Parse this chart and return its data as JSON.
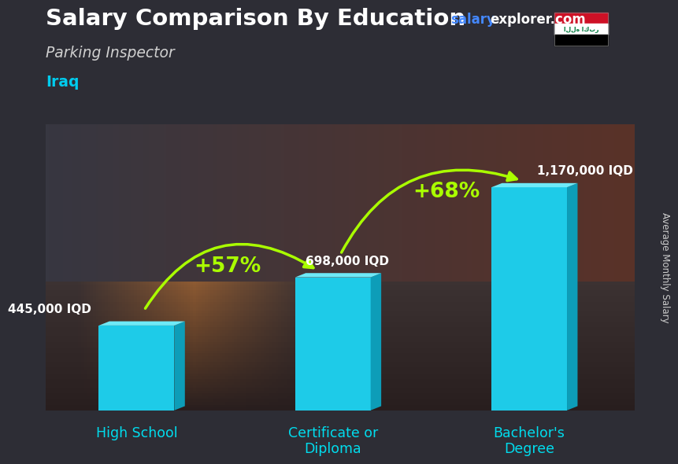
{
  "title": "Salary Comparison By Education",
  "subtitle": "Parking Inspector",
  "country": "Iraq",
  "watermark_salary": "salary",
  "watermark_rest": "explorer.com",
  "ylabel": "Average Monthly Salary",
  "categories": [
    "High School",
    "Certificate or\nDiploma",
    "Bachelor's\nDegree"
  ],
  "values": [
    445000,
    698000,
    1170000
  ],
  "value_labels": [
    "445,000 IQD",
    "698,000 IQD",
    "1,170,000 IQD"
  ],
  "pct_changes": [
    "+57%",
    "+68%"
  ],
  "bar_color_front": "#1ecbe8",
  "bar_color_top": "#6eeaf8",
  "bar_color_side": "#0d9db8",
  "title_color": "#ffffff",
  "subtitle_color": "#d0d0d0",
  "country_color": "#00ccee",
  "watermark_salary_color": "#4488ff",
  "watermark_rest_color": "#ffffff",
  "value_label_color": "#ffffff",
  "pct_color": "#aaff00",
  "xlabel_color": "#00ddee",
  "ylabel_color": "#cccccc",
  "bg_top_color": "#5a5a6a",
  "bg_mid_color": "#7a5a3a",
  "bg_bottom_color": "#3a3a3a",
  "figsize": [
    8.5,
    6.06
  ],
  "dpi": 100,
  "bar_positions": [
    0.7,
    2.0,
    3.3
  ],
  "bar_width": 0.5,
  "ylim": [
    0,
    1500000
  ],
  "xlim": [
    0.1,
    4.0
  ]
}
